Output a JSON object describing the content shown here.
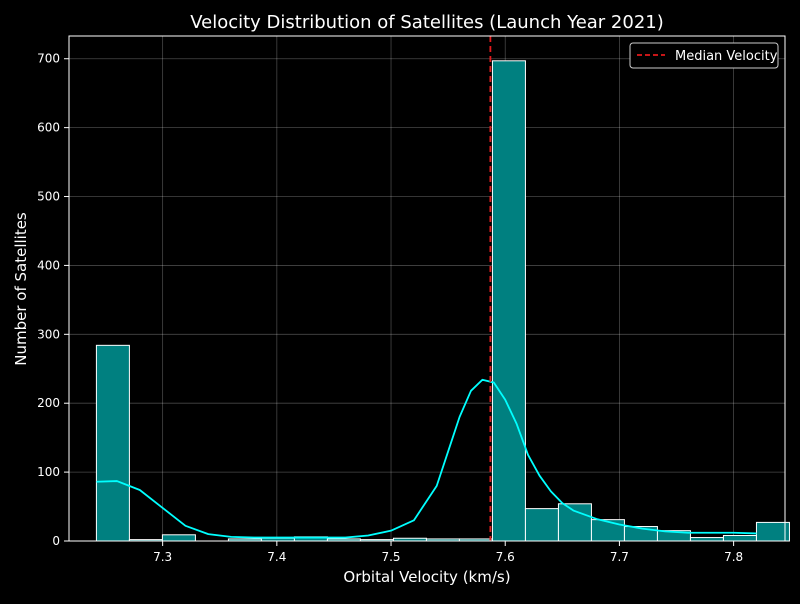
{
  "chart_data": {
    "type": "bar",
    "title": "Velocity Distribution of Satellites (Launch Year 2021)",
    "xlabel": "Orbital Velocity (km/s)",
    "ylabel": "Number of Satellites",
    "xlim": [
      7.218,
      7.845
    ],
    "ylim": [
      0,
      733
    ],
    "xticks": [
      7.3,
      7.4,
      7.5,
      7.6,
      7.7,
      7.8
    ],
    "yticks": [
      0,
      100,
      200,
      300,
      400,
      500,
      600,
      700
    ],
    "grid": true,
    "legend": {
      "position": "top-right",
      "entries": [
        {
          "label": "Median Velocity",
          "style": "dashed",
          "color": "#e31a1c"
        }
      ]
    },
    "bins": {
      "start": 7.242,
      "width": 0.0289,
      "counts": [
        284,
        2,
        9,
        0,
        3,
        4,
        6,
        3,
        2,
        4,
        3,
        3,
        697,
        47,
        54,
        31,
        21,
        15,
        5,
        8,
        27
      ]
    },
    "median_velocity": 7.587,
    "kde_curve": {
      "x": [
        7.242,
        7.26,
        7.28,
        7.3,
        7.32,
        7.34,
        7.36,
        7.38,
        7.4,
        7.42,
        7.44,
        7.46,
        7.48,
        7.5,
        7.52,
        7.54,
        7.55,
        7.56,
        7.57,
        7.58,
        7.59,
        7.6,
        7.61,
        7.62,
        7.63,
        7.64,
        7.65,
        7.66,
        7.68,
        7.7,
        7.72,
        7.74,
        7.76,
        7.78,
        7.8,
        7.82
      ],
      "y": [
        86,
        87,
        74,
        48,
        22,
        10,
        6,
        5,
        5,
        5,
        5,
        5,
        8,
        15,
        30,
        80,
        130,
        180,
        218,
        234,
        230,
        205,
        170,
        125,
        95,
        72,
        55,
        44,
        32,
        24,
        18,
        14,
        12,
        12,
        12,
        11
      ]
    },
    "colors": {
      "bar_fill": "#008080",
      "bar_edge": "#ffffff",
      "kde_line": "#00ffff",
      "median_line": "#e31a1c",
      "background": "#000000",
      "text": "#ffffff"
    }
  }
}
